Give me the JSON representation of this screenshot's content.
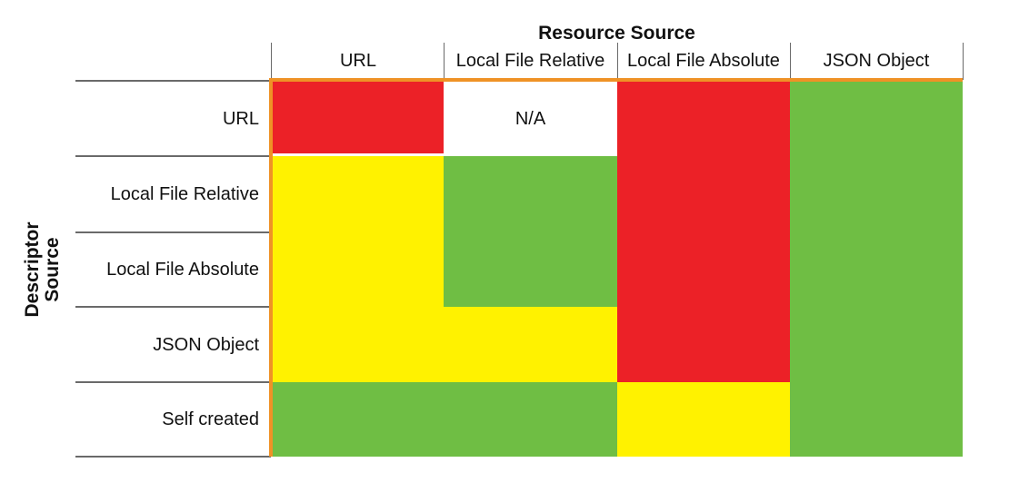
{
  "figure": {
    "title": "Resource Source",
    "y_axis_label": "Descriptor Source"
  },
  "chart_data": {
    "type": "heatmap",
    "title": "Resource Source",
    "xlabel": "Resource Source",
    "ylabel": "Descriptor Source",
    "x_categories": [
      "URL",
      "Local File Relative",
      "Local File Absolute",
      "JSON Object"
    ],
    "y_categories": [
      "URL",
      "Local File Relative",
      "Local File Absolute",
      "JSON Object",
      "Self created"
    ],
    "values": [
      [
        "red",
        "n/a",
        "red",
        "green"
      ],
      [
        "yellow",
        "green",
        "red",
        "green"
      ],
      [
        "yellow",
        "green",
        "red",
        "green"
      ],
      [
        "yellow",
        "yellow",
        "red",
        "green"
      ],
      [
        "green",
        "green",
        "yellow",
        "green"
      ]
    ],
    "na_label": "N/A",
    "legend": "none",
    "grid": "partial",
    "color_map": {
      "red": "#ec2127",
      "yellow": "#fff200",
      "green": "#6fbe44",
      "n/a": "#ffffff"
    },
    "accent_border_color": "#ef9226",
    "gridline_color": "#6a6a6a",
    "text_color": "#111111"
  }
}
